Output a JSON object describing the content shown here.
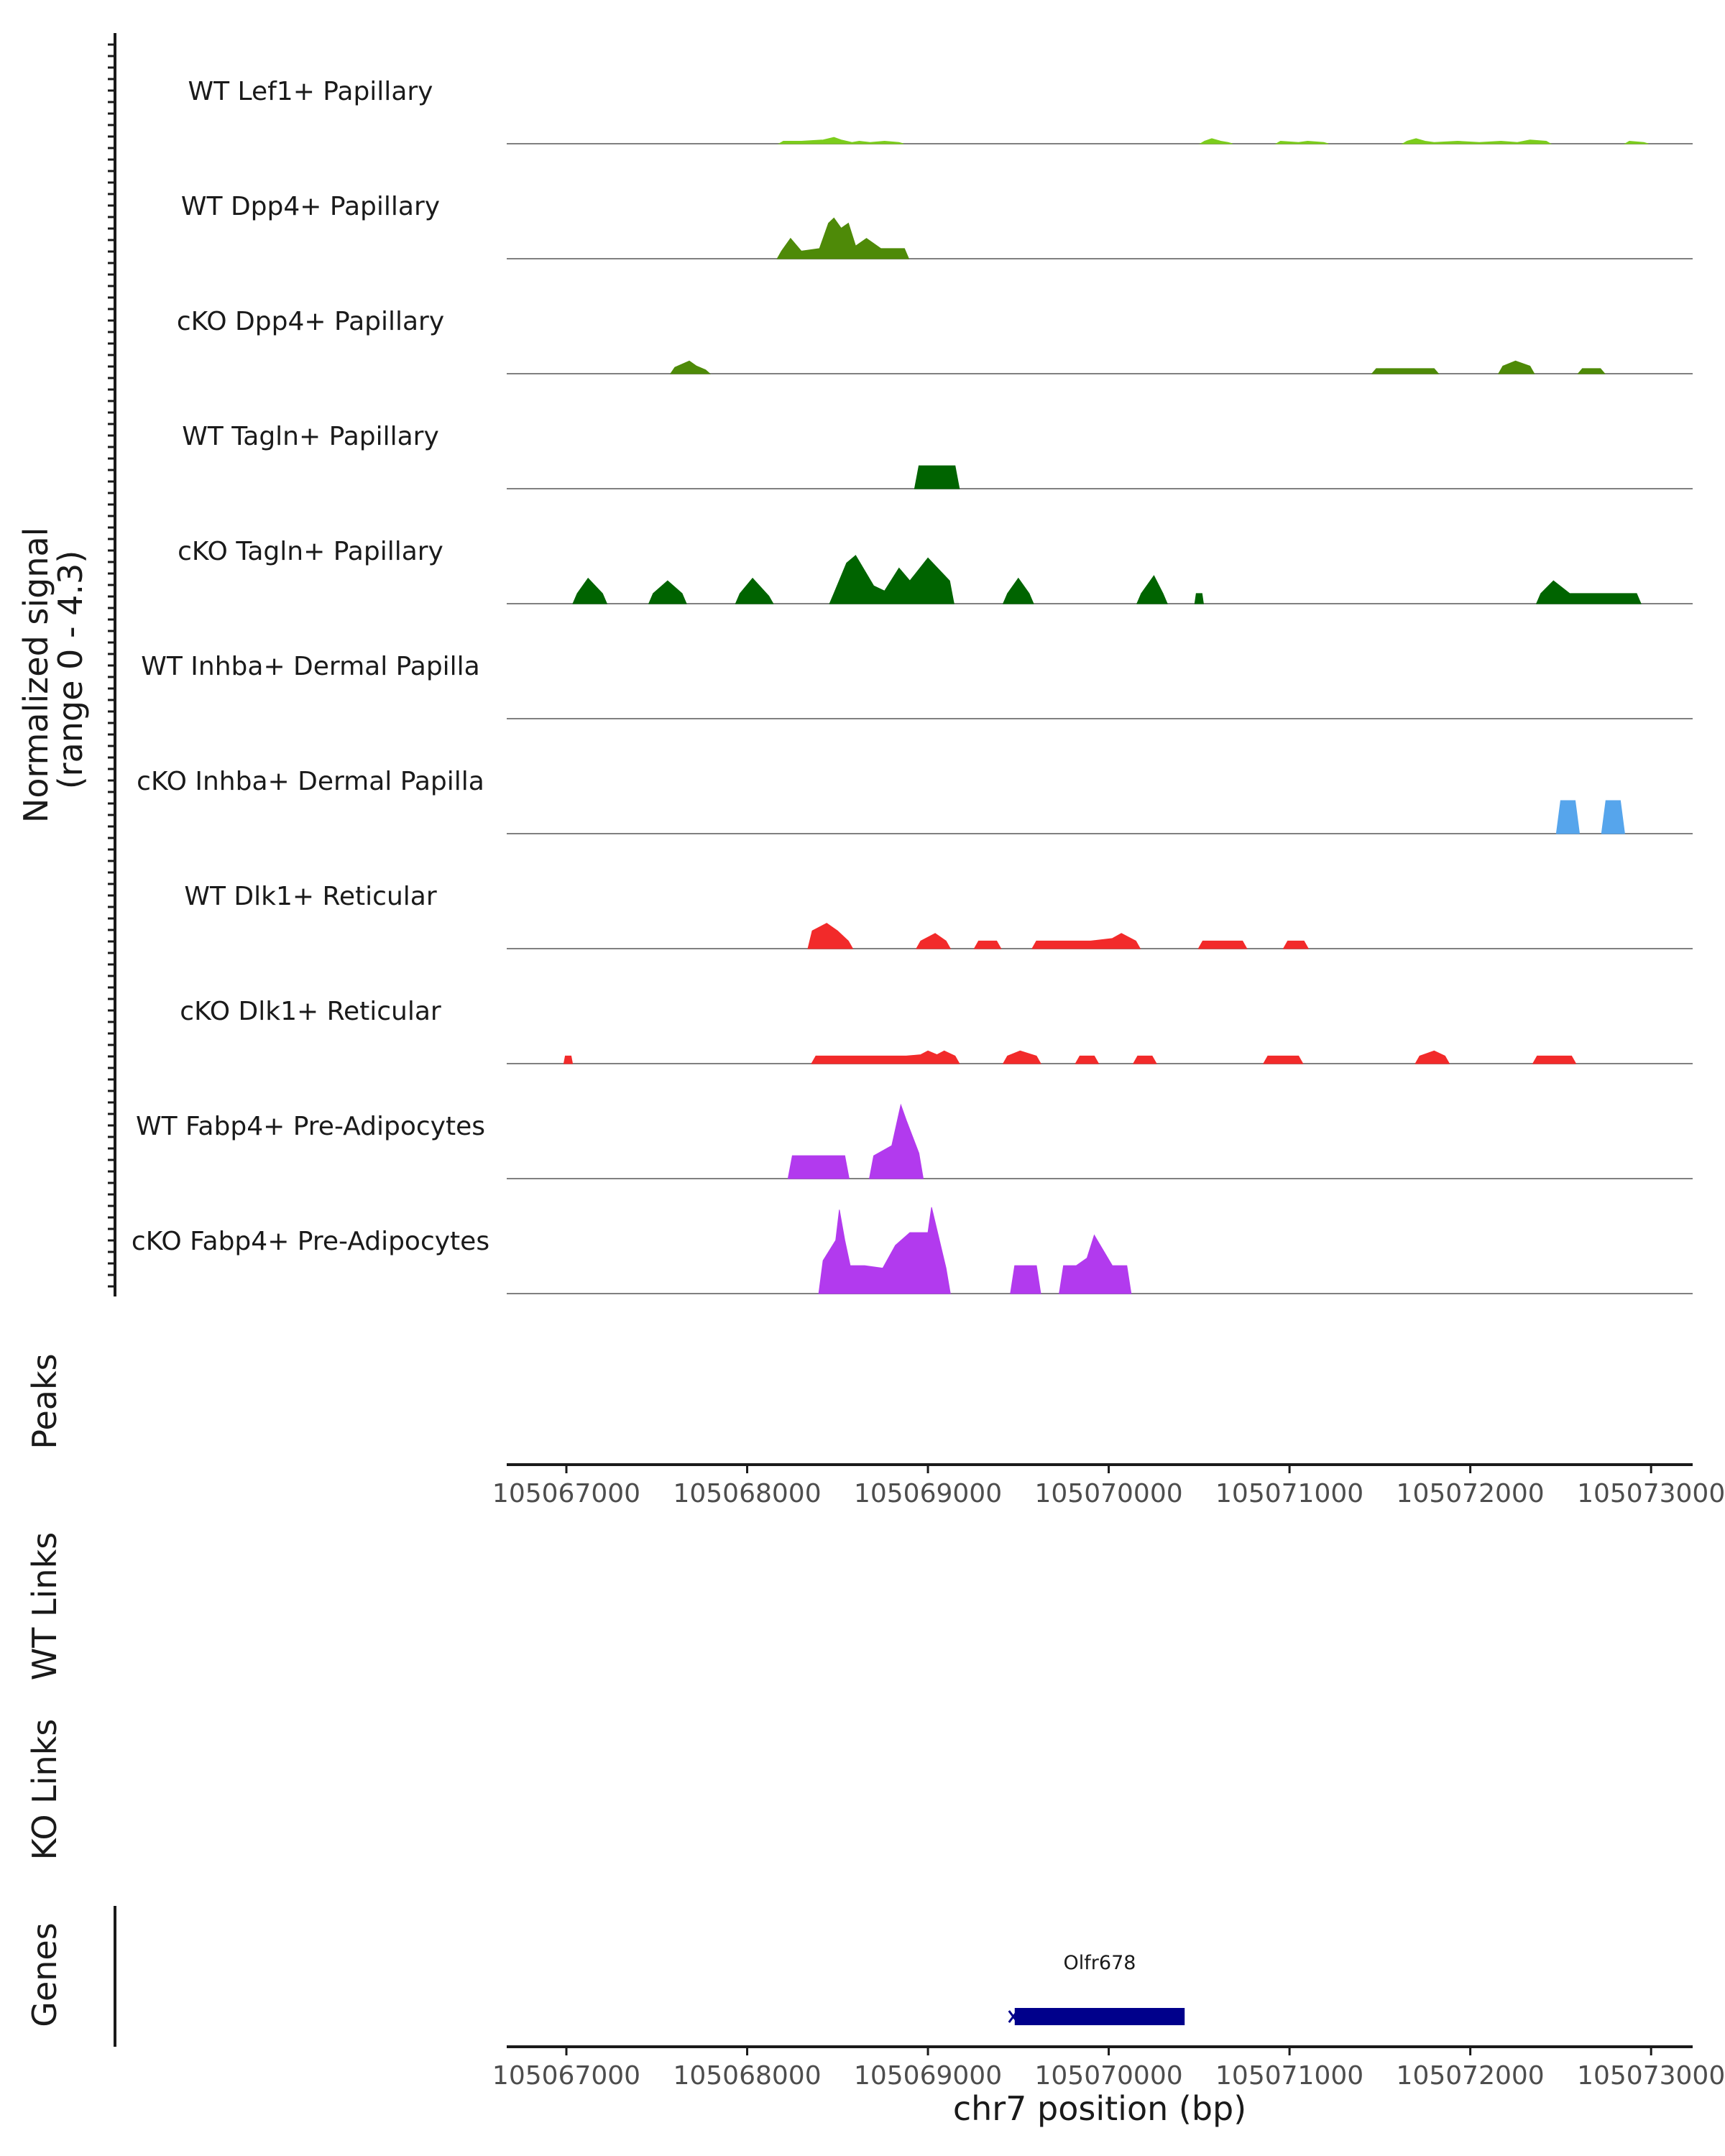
{
  "chart_data": {
    "type": "area",
    "title": "",
    "chromosome": "chr7",
    "xlim": [
      105066670,
      105073230
    ],
    "ylim": [
      0,
      4.3
    ],
    "signal_axis_title": [
      "Normalized signal",
      "(range 0 - 4.3)"
    ],
    "x_ticks": [
      105067000,
      105068000,
      105069000,
      105070000,
      105071000,
      105072000,
      105073000
    ],
    "xlabel": "chr7 position (bp)",
    "tracks": [
      {
        "name": "WT Lef1+ Papillary",
        "color": "#7CCD1C",
        "x": [
          105068200,
          105068300,
          105068420,
          105068480,
          105068520,
          105068580,
          105068620,
          105068680,
          105068760,
          105068840,
          105070530,
          105070570,
          105070620,
          105070660,
          105070950,
          105071050,
          105071100,
          105071190,
          105071650,
          105071700,
          105071750,
          105071800,
          105071930,
          105072050,
          105072170,
          105072260,
          105072330,
          105072420,
          105072880,
          105072960
        ],
        "y": [
          0.1,
          0.1,
          0.15,
          0.25,
          0.15,
          0.05,
          0.1,
          0.05,
          0.1,
          0.05,
          0.1,
          0.2,
          0.1,
          0.05,
          0.1,
          0.05,
          0.1,
          0.05,
          0.1,
          0.2,
          0.1,
          0.05,
          0.1,
          0.05,
          0.1,
          0.05,
          0.15,
          0.1,
          0.1,
          0.05
        ]
      },
      {
        "name": "WT Dpp4+ Papillary",
        "color": "#4E8A08",
        "x": [
          105068190,
          105068240,
          105068300,
          105068400,
          105068450,
          105068480,
          105068520,
          105068560,
          105068600,
          105068660,
          105068740,
          105068780,
          105068870
        ],
        "y": [
          0.3,
          0.8,
          0.3,
          0.4,
          1.4,
          1.6,
          1.2,
          1.4,
          0.5,
          0.8,
          0.4,
          0.4,
          0.4
        ]
      },
      {
        "name": "cKO Dpp4+ Papillary",
        "color": "#4E8A08",
        "x": [
          105067600,
          105067680,
          105067720,
          105067770,
          105071480,
          105071580,
          105071720,
          105071800,
          105072180,
          105072250,
          105072330,
          105072620,
          105072720
        ],
        "y": [
          0.25,
          0.5,
          0.3,
          0.15,
          0.2,
          0.2,
          0.2,
          0.2,
          0.3,
          0.5,
          0.3,
          0.2,
          0.2
        ]
      },
      {
        "name": "WT Tagln+ Papillary",
        "color": "#006400",
        "x": [
          105068950,
          105069050,
          105069150
        ],
        "y": [
          0.9,
          0.9,
          0.9
        ]
      },
      {
        "name": "cKO Tagln+ Papillary",
        "color": "#006400",
        "x": [
          105067060,
          105067120,
          105067200,
          105067480,
          105067560,
          105067640,
          105067960,
          105068030,
          105068120,
          105068480,
          105068550,
          105068600,
          105068700,
          105068760,
          105068840,
          105068900,
          105069000,
          105069120,
          105069440,
          105069500,
          105069560,
          105070180,
          105070250,
          105070300,
          105070500,
          105072390,
          105072460,
          105072550,
          105072670,
          105072760,
          105072860,
          105072920
        ],
        "y": [
          0.4,
          1.0,
          0.4,
          0.4,
          0.9,
          0.4,
          0.4,
          1.0,
          0.3,
          0.4,
          1.6,
          1.9,
          0.7,
          0.5,
          1.4,
          0.9,
          1.8,
          0.9,
          0.4,
          1.0,
          0.4,
          0.4,
          1.1,
          0.4,
          0.4,
          0.4,
          0.9,
          0.4,
          0.4,
          0.4,
          0.4,
          0.4
        ]
      },
      {
        "name": "WT Inhba+ Dermal Papilla",
        "color": "#56A5EC",
        "x": [],
        "y": []
      },
      {
        "name": "cKO Inhba+ Dermal Papilla",
        "color": "#56A5EC",
        "x": [
          105072500,
          105072580,
          105072750,
          105072830
        ],
        "y": [
          1.3,
          1.3,
          1.3,
          1.3
        ]
      },
      {
        "name": "WT Dlk1+ Reticular",
        "color": "#F22A2A",
        "x": [
          105068360,
          105068440,
          105068500,
          105068560,
          105068960,
          105069040,
          105069100,
          105069280,
          105069380,
          105069600,
          105069700,
          105069820,
          105069900,
          105070020,
          105070070,
          105070150,
          105070520,
          105070600,
          105070660,
          105070740,
          105070990,
          105071080
        ],
        "y": [
          0.7,
          1.0,
          0.7,
          0.3,
          0.3,
          0.6,
          0.3,
          0.3,
          0.3,
          0.3,
          0.3,
          0.3,
          0.3,
          0.4,
          0.6,
          0.3,
          0.3,
          0.3,
          0.3,
          0.3,
          0.3,
          0.3
        ]
      },
      {
        "name": "cKO Dlk1+ Reticular",
        "color": "#F22A2A",
        "x": [
          105067010,
          105068380,
          105068470,
          105068600,
          105068680,
          105068780,
          105068880,
          105068960,
          105069000,
          105069050,
          105069090,
          105069150,
          105069440,
          105069510,
          105069600,
          105069840,
          105069920,
          105070160,
          105070240,
          105070880,
          105070970,
          105071050,
          105071720,
          105071800,
          105071860,
          105072370,
          105072470,
          105072560
        ],
        "y": [
          0.3,
          0.3,
          0.3,
          0.3,
          0.3,
          0.3,
          0.3,
          0.35,
          0.5,
          0.35,
          0.5,
          0.3,
          0.3,
          0.5,
          0.3,
          0.3,
          0.3,
          0.3,
          0.3,
          0.3,
          0.3,
          0.3,
          0.3,
          0.5,
          0.3,
          0.3,
          0.3,
          0.3
        ]
      },
      {
        "name": "WT Fabp4+ Pre-Adipocytes",
        "color": "#B23AEE",
        "x": [
          105068250,
          105068330,
          105068470,
          105068540,
          105068700,
          105068800,
          105068850,
          105068880,
          105068950
        ],
        "y": [
          0.9,
          0.9,
          0.9,
          0.9,
          0.9,
          1.3,
          2.9,
          2.3,
          1.0
        ]
      },
      {
        "name": "cKO Fabp4+ Pre-Adipocytes",
        "color": "#B23AEE",
        "x": [
          105068420,
          105068490,
          105068510,
          105068540,
          105068570,
          105068650,
          105068750,
          105068820,
          105068900,
          105069000,
          105069020,
          105069100,
          105069480,
          105069600,
          105069750,
          105069820,
          105069880,
          105069920,
          105070020,
          105070100
        ],
        "y": [
          1.3,
          2.1,
          3.3,
          2.1,
          1.1,
          1.1,
          1.0,
          1.9,
          2.4,
          2.4,
          3.4,
          1.0,
          1.1,
          1.1,
          1.1,
          1.1,
          1.4,
          2.3,
          1.1,
          1.1
        ]
      }
    ],
    "empty_tracks": [
      "Peaks",
      "WT Links",
      "KO Links"
    ],
    "genes": [
      {
        "name": "Olfr678",
        "start": 105069480,
        "end": 105070420,
        "strand": "-",
        "color": "#00008B"
      }
    ],
    "genes_track_title": "Genes"
  }
}
